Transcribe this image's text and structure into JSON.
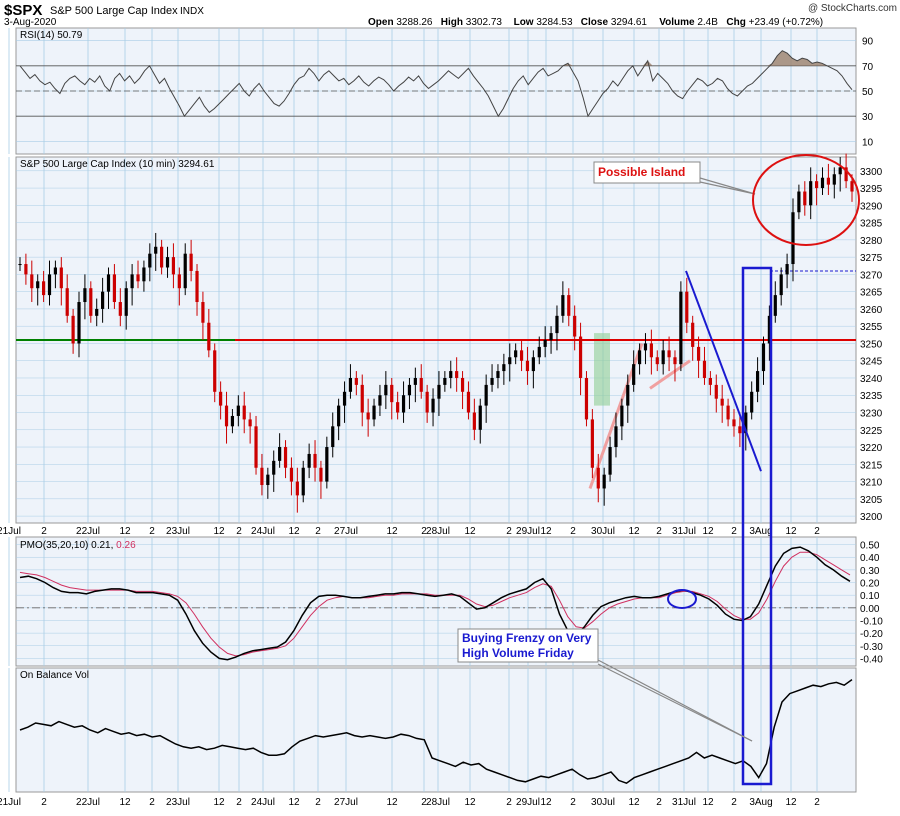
{
  "header": {
    "symbol": "$SPX",
    "name": "S&P 500 Large Cap Index",
    "exchange": "INDX",
    "date": "3-Aug-2020",
    "watermark": "@ StockCharts.com",
    "quote": [
      {
        "label": "Open",
        "value": "3288.26"
      },
      {
        "label": "High",
        "value": "3302.73"
      },
      {
        "label": "Low",
        "value": "3284.53"
      },
      {
        "label": "Close",
        "value": "3294.61"
      },
      {
        "label": "Volume",
        "value": "2.4B"
      },
      {
        "label": "Chg",
        "value": "+23.49 (+0.72%)"
      }
    ]
  },
  "colors": {
    "background": "#ffffff",
    "panel_bg": "#eef3fa",
    "grid": "#a9cde6",
    "up": "#000000",
    "down": "#cc0000",
    "support": "#008000",
    "resistance": "#dd0000",
    "annotation_blue": "#1a1ad0",
    "annotation_red": "#dd1111",
    "pmo_signal": "#d03060"
  },
  "chart_data": [
    {
      "type": "line",
      "panel": "rsi",
      "title": "RSI(14) 50.79",
      "yticks": [
        10,
        30,
        50,
        70,
        90
      ],
      "ylim": [
        0,
        100
      ],
      "reference_lines": [
        30,
        50,
        70
      ],
      "series": [
        {
          "values": [
            70,
            65,
            60,
            63,
            58,
            55,
            57,
            52,
            48,
            56,
            60,
            62,
            58,
            55,
            60,
            57,
            62,
            54,
            50,
            60,
            64,
            58,
            62,
            56,
            60,
            66,
            70,
            63,
            56,
            60,
            52,
            45,
            38,
            30,
            35,
            40,
            45,
            38,
            33,
            36,
            40,
            44,
            48,
            52,
            56,
            50,
            46,
            52,
            56,
            50,
            45,
            40,
            38,
            42,
            48,
            55,
            60,
            62,
            68,
            64,
            58,
            63,
            66,
            62,
            58,
            60,
            55,
            58,
            62,
            57,
            54,
            58,
            61,
            59,
            55,
            50,
            54,
            57,
            61,
            58,
            62,
            56,
            52,
            55,
            58,
            62,
            66,
            63,
            60,
            64,
            68,
            62,
            57,
            52,
            46,
            38,
            30,
            36,
            44,
            52,
            58,
            62,
            55,
            60,
            65,
            68,
            62,
            64,
            66,
            70,
            72,
            65,
            58,
            45,
            30,
            36,
            42,
            48,
            52,
            58,
            54,
            60,
            66,
            70,
            62,
            68,
            74,
            58,
            64,
            60,
            56,
            50,
            46,
            44,
            50,
            55,
            60,
            58,
            54,
            56,
            60,
            58,
            52,
            48,
            46,
            50,
            54,
            56,
            60,
            64,
            68,
            72,
            78,
            82,
            80,
            76,
            74,
            76,
            75,
            72,
            73,
            72,
            70,
            68,
            66,
            62,
            56,
            51
          ]
        }
      ]
    },
    {
      "type": "candlestick",
      "panel": "price",
      "title": "S&P 500 Large Cap Index (10 min) 3294.61",
      "yticks": [
        3200,
        3205,
        3210,
        3215,
        3220,
        3225,
        3230,
        3235,
        3240,
        3245,
        3250,
        3255,
        3260,
        3265,
        3270,
        3275,
        3280,
        3285,
        3290,
        3295,
        3300
      ],
      "ylim": [
        3198,
        3304
      ],
      "support_level": 3251,
      "resistance_level": 3251,
      "gap_level": 3271,
      "x_labels": [
        "21Jul",
        "2",
        "22Jul",
        "12",
        "2",
        "23Jul",
        "12",
        "2",
        "24Jul",
        "12",
        "2",
        "27Jul",
        "12",
        "2",
        "28Jul",
        "12",
        "2",
        "29Jul",
        "12",
        "2",
        "30Jul",
        "12",
        "2",
        "31Jul",
        "12",
        "2",
        "3Aug",
        "12",
        "2"
      ],
      "closes": [
        3273,
        3270,
        3266,
        3268,
        3264,
        3270,
        3272,
        3266,
        3258,
        3250,
        3262,
        3266,
        3258,
        3260,
        3265,
        3270,
        3262,
        3258,
        3266,
        3270,
        3268,
        3272,
        3276,
        3278,
        3272,
        3275,
        3270,
        3266,
        3276,
        3271,
        3262,
        3256,
        3248,
        3236,
        3232,
        3226,
        3229,
        3232,
        3228,
        3226,
        3214,
        3209,
        3212,
        3216,
        3220,
        3214,
        3210,
        3206,
        3214,
        3218,
        3214,
        3210,
        3220,
        3226,
        3232,
        3236,
        3240,
        3238,
        3230,
        3228,
        3232,
        3235,
        3238,
        3233,
        3230,
        3235,
        3238,
        3240,
        3236,
        3230,
        3234,
        3238,
        3240,
        3242,
        3240,
        3236,
        3230,
        3225,
        3232,
        3238,
        3240,
        3242,
        3244,
        3246,
        3248,
        3245,
        3242,
        3246,
        3249,
        3251,
        3253,
        3258,
        3264,
        3258,
        3252,
        3240,
        3228,
        3214,
        3208,
        3212,
        3220,
        3226,
        3232,
        3238,
        3244,
        3248,
        3250,
        3246,
        3244,
        3248,
        3246,
        3244,
        3265,
        3256,
        3249,
        3245,
        3240,
        3238,
        3234,
        3232,
        3228,
        3226,
        3224,
        3230,
        3236,
        3242,
        3250,
        3258,
        3264,
        3270,
        3273,
        3288,
        3294,
        3290,
        3297,
        3295,
        3298,
        3296,
        3299,
        3301,
        3297,
        3294
      ]
    },
    {
      "type": "line",
      "panel": "pmo",
      "title": "PMO(35,20,10) 0.21, 0.26",
      "yticks": [
        -0.4,
        -0.3,
        -0.2,
        -0.1,
        0.0,
        0.1,
        0.2,
        0.3,
        0.4,
        0.5
      ],
      "ytick_labels": [
        "-0.40",
        "-0.30",
        "-0.20",
        "-0.10",
        "0.00",
        "0.10",
        "0.20",
        "0.30",
        "0.40",
        "0.50"
      ],
      "ylim": [
        -0.46,
        0.56
      ],
      "series": [
        {
          "name": "PMO",
          "values": [
            0.24,
            0.25,
            0.23,
            0.2,
            0.16,
            0.13,
            0.12,
            0.12,
            0.11,
            0.13,
            0.14,
            0.15,
            0.15,
            0.14,
            0.12,
            0.12,
            0.12,
            0.11,
            0.1,
            0.06,
            -0.05,
            -0.18,
            -0.28,
            -0.35,
            -0.4,
            -0.41,
            -0.39,
            -0.36,
            -0.34,
            -0.33,
            -0.32,
            -0.31,
            -0.27,
            -0.18,
            -0.06,
            0.04,
            0.09,
            0.1,
            0.1,
            0.09,
            0.08,
            0.08,
            0.09,
            0.1,
            0.11,
            0.11,
            0.12,
            0.12,
            0.11,
            0.1,
            0.09,
            0.1,
            0.11,
            0.09,
            0.04,
            -0.01,
            0.0,
            0.04,
            0.08,
            0.11,
            0.13,
            0.15,
            0.2,
            0.23,
            0.15,
            -0.05,
            -0.18,
            -0.22,
            -0.15,
            -0.06,
            0.01,
            0.04,
            0.06,
            0.08,
            0.09,
            0.08,
            0.08,
            0.09,
            0.11,
            0.13,
            0.14,
            0.12,
            0.1,
            0.07,
            0.02,
            -0.05,
            -0.09,
            -0.1,
            -0.07,
            0.03,
            0.18,
            0.33,
            0.43,
            0.47,
            0.48,
            0.45,
            0.4,
            0.34,
            0.3,
            0.25,
            0.21
          ]
        },
        {
          "name": "Signal",
          "values": [
            0.28,
            0.27,
            0.26,
            0.24,
            0.21,
            0.18,
            0.16,
            0.15,
            0.14,
            0.14,
            0.14,
            0.14,
            0.14,
            0.14,
            0.13,
            0.13,
            0.13,
            0.12,
            0.11,
            0.09,
            0.04,
            -0.05,
            -0.15,
            -0.24,
            -0.31,
            -0.36,
            -0.38,
            -0.37,
            -0.35,
            -0.34,
            -0.33,
            -0.32,
            -0.3,
            -0.24,
            -0.15,
            -0.06,
            0.01,
            0.06,
            0.08,
            0.09,
            0.08,
            0.08,
            0.08,
            0.09,
            0.1,
            0.1,
            0.11,
            0.11,
            0.11,
            0.11,
            0.1,
            0.1,
            0.1,
            0.1,
            0.07,
            0.03,
            0.01,
            0.02,
            0.05,
            0.08,
            0.1,
            0.12,
            0.16,
            0.19,
            0.17,
            0.06,
            -0.07,
            -0.15,
            -0.16,
            -0.11,
            -0.05,
            0.0,
            0.03,
            0.05,
            0.07,
            0.08,
            0.08,
            0.08,
            0.1,
            0.12,
            0.13,
            0.13,
            0.11,
            0.09,
            0.05,
            -0.01,
            -0.06,
            -0.09,
            -0.09,
            -0.04,
            0.07,
            0.21,
            0.33,
            0.4,
            0.44,
            0.44,
            0.42,
            0.38,
            0.34,
            0.3,
            0.26
          ]
        }
      ]
    },
    {
      "type": "line",
      "panel": "obv",
      "title": "On Balance Vol",
      "series": [
        {
          "values": [
            40,
            42,
            45,
            44,
            43,
            46,
            44,
            42,
            43,
            40,
            38,
            41,
            39,
            37,
            38,
            36,
            37,
            35,
            36,
            33,
            30,
            28,
            27,
            28,
            26,
            27,
            29,
            28,
            27,
            26,
            27,
            24,
            22,
            22,
            23,
            28,
            32,
            34,
            36,
            35,
            36,
            37,
            38,
            36,
            35,
            36,
            35,
            34,
            35,
            37,
            36,
            34,
            33,
            20,
            18,
            16,
            14,
            17,
            15,
            16,
            12,
            10,
            8,
            6,
            4,
            3,
            5,
            7,
            6,
            8,
            10,
            12,
            8,
            5,
            6,
            8,
            10,
            4,
            2,
            6,
            8,
            10,
            12,
            14,
            16,
            18,
            20,
            24,
            20,
            22,
            20,
            18,
            16,
            18,
            14,
            6,
            16,
            42,
            60,
            66,
            68,
            70,
            72,
            71,
            73,
            74,
            72,
            76
          ]
        }
      ]
    }
  ],
  "annotations": {
    "possible_island": "Possible Island",
    "buying_frenzy_line1": "Buying Frenzy on Very",
    "buying_frenzy_line2": "High Volume Friday"
  }
}
